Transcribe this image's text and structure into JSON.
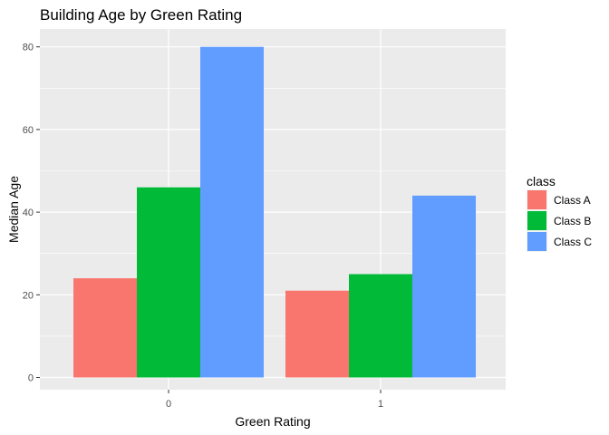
{
  "chart_data": {
    "type": "bar",
    "title": "Building Age by Green Rating",
    "xlabel": "Green Rating",
    "ylabel": "Median Age",
    "categories": [
      "0",
      "1"
    ],
    "ylim": [
      0,
      84
    ],
    "yticks": [
      0,
      20,
      40,
      60,
      80
    ],
    "series": [
      {
        "name": "Class A",
        "color": "#F8766D",
        "values": [
          24,
          21
        ]
      },
      {
        "name": "Class B",
        "color": "#00BA38",
        "values": [
          46,
          25
        ]
      },
      {
        "name": "Class C",
        "color": "#619CFF",
        "values": [
          80,
          44
        ]
      }
    ],
    "legend": {
      "title": "class",
      "position": "right"
    },
    "grid": true,
    "panel_background": "#EBEBEB"
  }
}
